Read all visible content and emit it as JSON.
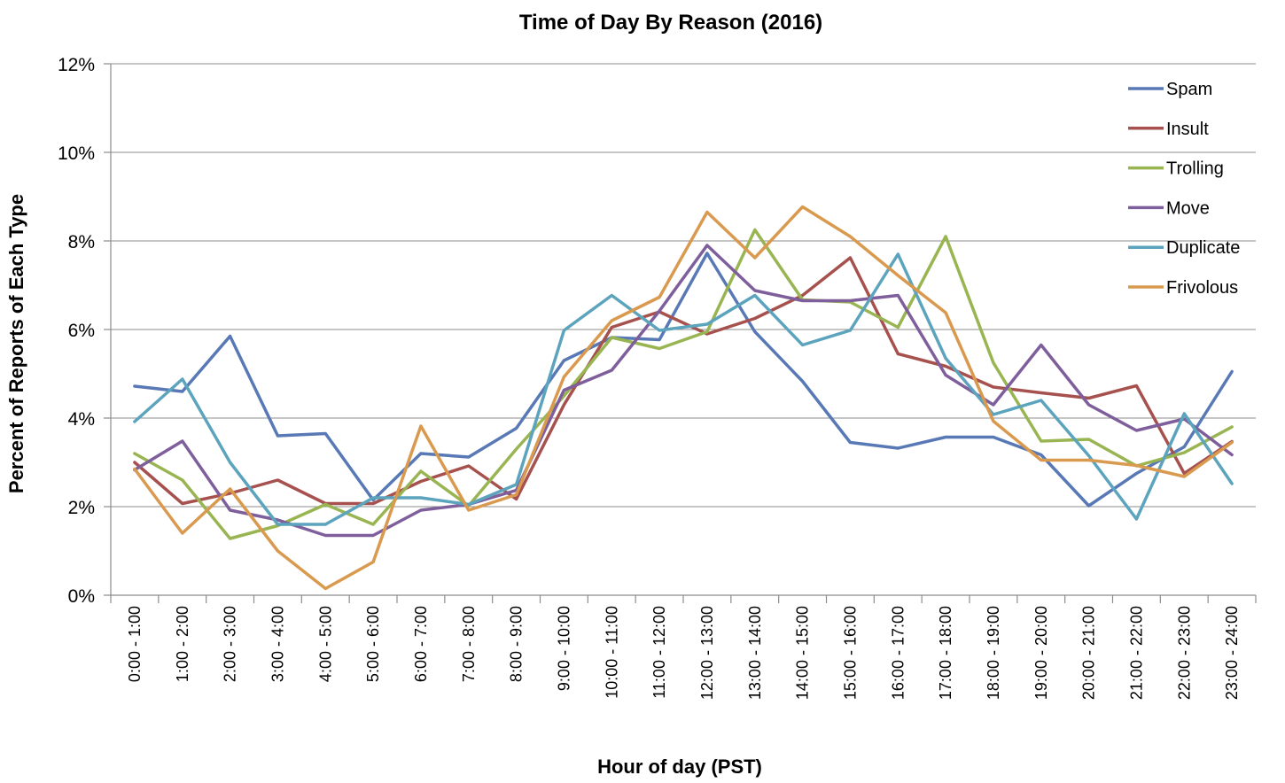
{
  "chart_data": {
    "type": "line",
    "title": "Time of Day By Reason (2016)",
    "xlabel": "Hour of day (PST)",
    "ylabel": "Percent of Reports of Each Type",
    "ylim": [
      0,
      12
    ],
    "yticks": [
      0,
      2,
      4,
      6,
      8,
      10,
      12
    ],
    "ytick_labels": [
      "0%",
      "2%",
      "4%",
      "6%",
      "8%",
      "10%",
      "12%"
    ],
    "grid": true,
    "legend_position": "top-right",
    "categories": [
      "0:00 - 1:00",
      "1:00 - 2:00",
      "2:00 - 3:00",
      "3:00 - 4:00",
      "4:00 - 5:00",
      "5:00 - 6:00",
      "6:00 - 7:00",
      "7:00 - 8:00",
      "8:00 - 9:00",
      "9:00 - 10:00",
      "10:00 - 11:00",
      "11:00 - 12:00",
      "12:00 - 13:00",
      "13:00 - 14:00",
      "14:00 - 15:00",
      "15:00 - 16:00",
      "16:00 - 17:00",
      "17:00 - 18:00",
      "18:00 - 19:00",
      "19:00 - 20:00",
      "20:00 - 21:00",
      "21:00 - 22:00",
      "22:00 - 23:00",
      "23:00 - 24:00"
    ],
    "series": [
      {
        "name": "Spam",
        "color": "#5879b5",
        "values": [
          4.72,
          4.6,
          5.85,
          3.6,
          3.65,
          2.15,
          3.2,
          3.12,
          3.77,
          5.3,
          5.82,
          5.77,
          7.72,
          5.95,
          4.83,
          3.45,
          3.32,
          3.57,
          3.57,
          3.17,
          2.02,
          2.75,
          3.35,
          5.05
        ]
      },
      {
        "name": "Insult",
        "color": "#a6514e",
        "values": [
          3.0,
          2.07,
          2.3,
          2.6,
          2.07,
          2.07,
          2.57,
          2.92,
          2.17,
          4.3,
          6.05,
          6.4,
          5.9,
          6.25,
          6.77,
          7.62,
          5.45,
          5.17,
          4.7,
          4.57,
          4.45,
          4.73,
          2.75,
          3.47
        ]
      },
      {
        "name": "Trolling",
        "color": "#98b552",
        "values": [
          3.2,
          2.6,
          1.28,
          1.57,
          2.05,
          1.6,
          2.8,
          2.02,
          3.3,
          4.5,
          5.82,
          5.57,
          5.95,
          8.25,
          6.67,
          6.62,
          6.05,
          8.1,
          5.25,
          3.48,
          3.52,
          2.92,
          3.22,
          3.8
        ]
      },
      {
        "name": "Move",
        "color": "#7e5f9c",
        "values": [
          2.83,
          3.48,
          1.92,
          1.7,
          1.35,
          1.35,
          1.92,
          2.05,
          2.37,
          4.63,
          5.08,
          6.42,
          7.9,
          6.88,
          6.65,
          6.65,
          6.77,
          4.97,
          4.3,
          5.65,
          4.3,
          3.72,
          3.98,
          3.17
        ]
      },
      {
        "name": "Duplicate",
        "color": "#5ca4bd",
        "values": [
          3.92,
          4.88,
          3.0,
          1.6,
          1.6,
          2.2,
          2.2,
          2.05,
          2.5,
          5.98,
          6.77,
          5.98,
          6.12,
          6.77,
          5.65,
          5.98,
          7.7,
          5.35,
          4.08,
          4.4,
          3.15,
          1.72,
          4.1,
          2.52
        ]
      },
      {
        "name": "Frivolous",
        "color": "#d99a4f",
        "values": [
          2.85,
          1.4,
          2.4,
          1.0,
          0.15,
          0.75,
          3.82,
          1.92,
          2.27,
          4.93,
          6.2,
          6.73,
          8.65,
          7.62,
          8.77,
          8.1,
          7.22,
          6.38,
          3.93,
          3.05,
          3.05,
          2.93,
          2.68,
          3.45
        ]
      }
    ]
  }
}
